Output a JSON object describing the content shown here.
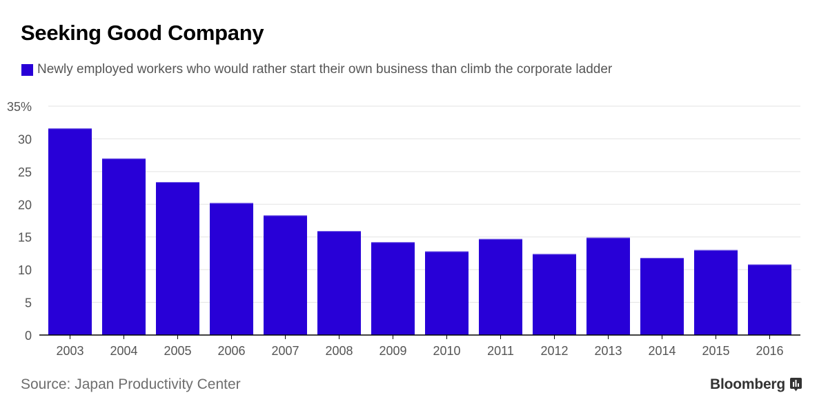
{
  "header": {
    "title": "Seeking Good Company"
  },
  "legend": {
    "label": "Newly employed workers who would rather start their own business than climb the corporate ladder",
    "color": "#2800d7"
  },
  "footer": {
    "source": "Source: Japan Productivity Center",
    "brand": "Bloomberg",
    "brand_icon": "bloomberg-chart-icon"
  },
  "chart_data": {
    "type": "bar",
    "title": "Seeking Good Company",
    "xlabel": "",
    "ylabel": "",
    "categories": [
      "2003",
      "2004",
      "2005",
      "2006",
      "2007",
      "2008",
      "2009",
      "2010",
      "2011",
      "2012",
      "2013",
      "2014",
      "2015",
      "2016"
    ],
    "series": [
      {
        "name": "Newly employed workers who would rather start their own business than climb the corporate ladder",
        "color": "#2800d7",
        "values": [
          31.6,
          27.0,
          23.4,
          20.2,
          18.3,
          15.9,
          14.2,
          12.8,
          14.7,
          12.4,
          14.9,
          11.8,
          13.0,
          10.8
        ]
      }
    ],
    "ylim": [
      0,
      35
    ],
    "yticks": [
      0,
      5,
      10,
      15,
      20,
      25,
      30,
      35
    ],
    "ytick_labels": [
      "0",
      "5",
      "10",
      "15",
      "20",
      "25",
      "30",
      "35%"
    ],
    "grid": true,
    "legend_position": "top-left",
    "colors": {
      "bar": "#2800d7",
      "grid": "#e3e3e3",
      "axis": "#000000"
    }
  }
}
